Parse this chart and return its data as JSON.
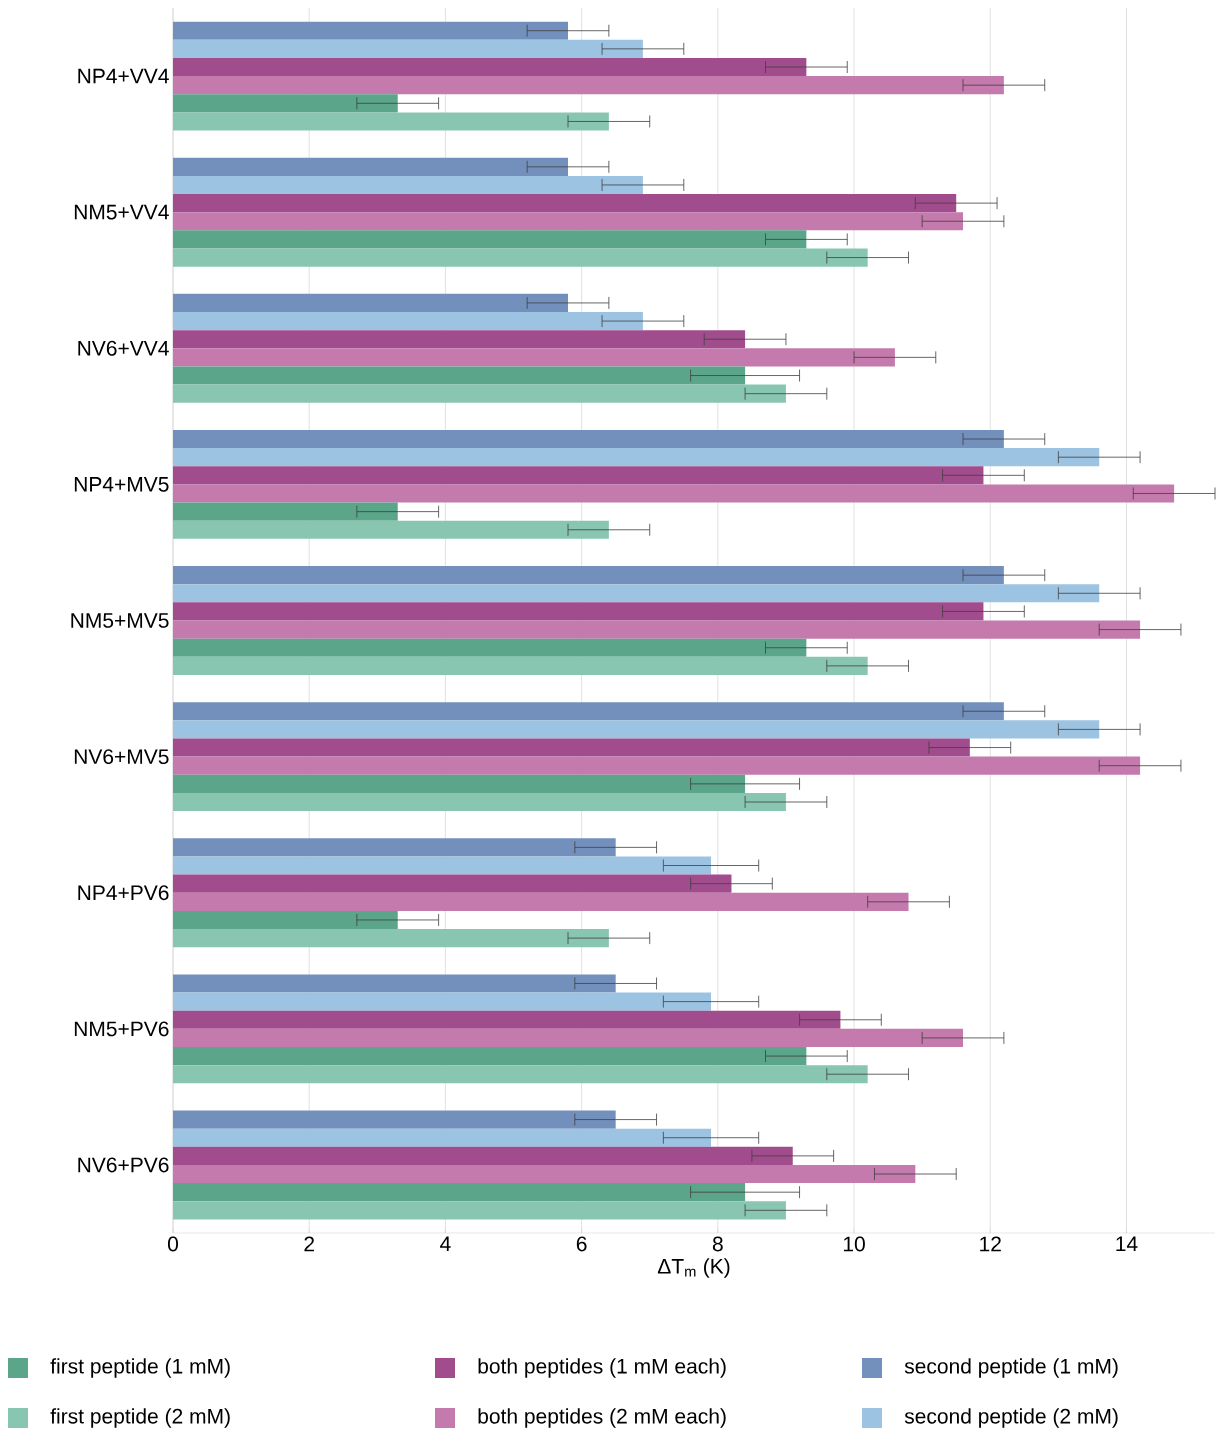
{
  "chart_data": {
    "type": "bar",
    "orientation": "horizontal",
    "xlabel": "ΔT$_{m}$ (K)",
    "categories": [
      "NP4+VV4",
      "NM5+VV4",
      "NV6+VV4",
      "NP4+MV5",
      "NM5+MV5",
      "NV6+MV5",
      "NP4+PV6",
      "NM5+PV6",
      "NV6+PV6"
    ],
    "series": [
      {
        "name": "second peptide (1 mM)",
        "color": "#7390bd",
        "values": [
          5.8,
          5.8,
          5.8,
          12.2,
          12.2,
          12.2,
          6.5,
          6.5,
          6.5
        ],
        "errors": [
          0.6,
          0.6,
          0.6,
          0.6,
          0.6,
          0.6,
          0.6,
          0.6,
          0.6
        ]
      },
      {
        "name": "second peptide (2 mM)",
        "color": "#9dc3e2",
        "values": [
          6.9,
          6.9,
          6.9,
          13.6,
          13.6,
          13.6,
          7.9,
          7.9,
          7.9
        ],
        "errors": [
          0.6,
          0.6,
          0.6,
          0.6,
          0.6,
          0.6,
          0.7,
          0.7,
          0.7
        ]
      },
      {
        "name": "both peptides (1 mM each)",
        "color": "#a14c8c",
        "values": [
          9.3,
          11.5,
          8.4,
          11.9,
          11.9,
          11.7,
          8.2,
          9.8,
          9.1
        ],
        "errors": [
          0.6,
          0.6,
          0.6,
          0.6,
          0.6,
          0.6,
          0.6,
          0.6,
          0.6
        ]
      },
      {
        "name": "both peptides (2 mM each)",
        "color": "#c47aac",
        "values": [
          12.2,
          11.6,
          10.6,
          14.7,
          14.2,
          14.2,
          10.8,
          11.6,
          10.9
        ],
        "errors": [
          0.6,
          0.6,
          0.6,
          0.6,
          0.6,
          0.6,
          0.6,
          0.6,
          0.6
        ]
      },
      {
        "name": "first peptide (1 mM)",
        "color": "#5ba58b",
        "values": [
          3.3,
          9.3,
          8.4,
          3.3,
          9.3,
          8.4,
          3.3,
          9.3,
          8.4
        ],
        "errors": [
          0.6,
          0.6,
          0.8,
          0.6,
          0.6,
          0.8,
          0.6,
          0.6,
          0.8
        ]
      },
      {
        "name": "first peptide (2 mM)",
        "color": "#88c6b1",
        "values": [
          6.4,
          10.2,
          9.0,
          6.4,
          10.2,
          9.0,
          6.4,
          10.2,
          9.0
        ],
        "errors": [
          0.6,
          0.6,
          0.6,
          0.6,
          0.6,
          0.6,
          0.6,
          0.6,
          0.6
        ]
      }
    ],
    "xlim": [
      0,
      15.3
    ],
    "xticks": [
      0,
      2,
      4,
      6,
      8,
      10,
      12,
      14
    ],
    "grid": "x",
    "legend": "bottom"
  }
}
